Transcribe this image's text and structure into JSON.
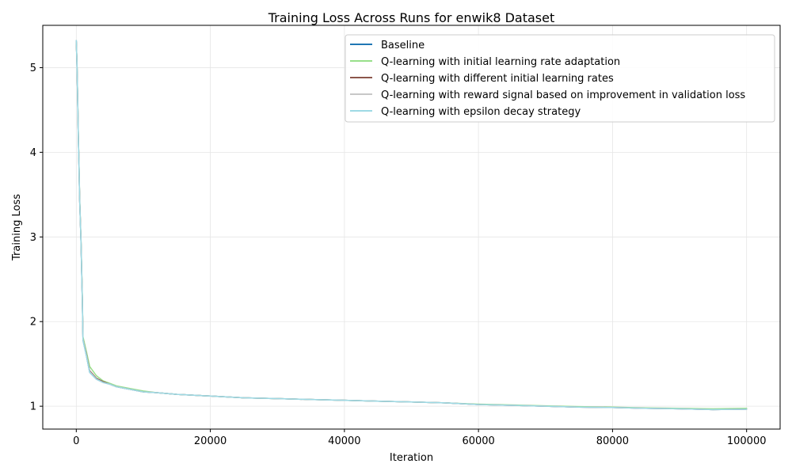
{
  "chart_data": {
    "type": "line",
    "title": "Training Loss Across Runs for enwik8 Dataset",
    "xlabel": "Iteration",
    "ylabel": "Training Loss",
    "xlim": [
      -5000,
      105000
    ],
    "ylim": [
      0.73,
      5.5
    ],
    "xticks": [
      0,
      20000,
      40000,
      60000,
      80000,
      100000
    ],
    "yticks": [
      1,
      2,
      3,
      4,
      5
    ],
    "grid": true,
    "legend_position": "top-right",
    "series": [
      {
        "name": "Baseline",
        "color": "#1f77b4",
        "x": [
          0,
          100,
          200,
          300,
          400,
          500,
          700,
          900,
          1000,
          1500,
          2000,
          3000,
          4000,
          5000,
          6000,
          8000,
          10000,
          12000,
          15000,
          20000,
          25000,
          30000,
          35000,
          40000,
          45000,
          50000,
          55000,
          60000,
          65000,
          70000,
          75000,
          80000,
          85000,
          90000,
          95000,
          100000
        ],
        "y": [
          5.32,
          5.05,
          4.65,
          4.2,
          3.85,
          3.45,
          2.95,
          2.25,
          1.78,
          1.6,
          1.4,
          1.32,
          1.28,
          1.26,
          1.23,
          1.2,
          1.17,
          1.16,
          1.14,
          1.12,
          1.1,
          1.09,
          1.08,
          1.07,
          1.06,
          1.05,
          1.04,
          1.02,
          1.01,
          1.0,
          0.99,
          0.985,
          0.975,
          0.97,
          0.96,
          0.965
        ]
      },
      {
        "name": "Q-learning with initial learning rate adaptation",
        "color": "#98df8a",
        "x": [
          0,
          100,
          200,
          300,
          400,
          500,
          700,
          900,
          1000,
          1500,
          2000,
          3000,
          4000,
          5000,
          6000,
          8000,
          10000,
          12000,
          15000,
          20000,
          25000,
          30000,
          35000,
          40000,
          45000,
          50000,
          55000,
          60000,
          65000,
          70000,
          75000,
          80000,
          85000,
          90000,
          95000,
          100000
        ],
        "y": [
          5.3,
          5.08,
          4.68,
          4.22,
          3.88,
          3.48,
          2.98,
          2.3,
          1.82,
          1.65,
          1.47,
          1.36,
          1.3,
          1.27,
          1.24,
          1.21,
          1.18,
          1.16,
          1.14,
          1.12,
          1.1,
          1.09,
          1.08,
          1.07,
          1.06,
          1.05,
          1.04,
          1.025,
          1.015,
          1.005,
          0.995,
          0.99,
          0.98,
          0.975,
          0.97,
          0.975
        ]
      },
      {
        "name": "Q-learning with different initial learning rates",
        "color": "#8c564b",
        "x": [
          0,
          100,
          200,
          300,
          400,
          500,
          700,
          900,
          1000,
          1500,
          2000,
          3000,
          4000,
          5000,
          6000,
          8000,
          10000,
          12000,
          15000,
          20000,
          25000,
          30000,
          35000,
          40000,
          45000,
          50000,
          55000,
          60000,
          65000,
          70000,
          75000,
          80000,
          85000,
          90000,
          95000,
          100000
        ],
        "y": [
          5.31,
          5.06,
          4.66,
          4.21,
          3.86,
          3.46,
          2.96,
          2.27,
          1.79,
          1.62,
          1.42,
          1.33,
          1.29,
          1.26,
          1.23,
          1.2,
          1.17,
          1.16,
          1.14,
          1.12,
          1.1,
          1.09,
          1.08,
          1.07,
          1.06,
          1.05,
          1.04,
          1.02,
          1.01,
          1.0,
          0.99,
          0.985,
          0.975,
          0.97,
          0.96,
          0.965
        ]
      },
      {
        "name": "Q-learning with reward signal based on improvement in validation loss",
        "color": "#c7c7c7",
        "x": [
          0,
          100,
          200,
          300,
          400,
          500,
          700,
          900,
          1000,
          1500,
          2000,
          3000,
          4000,
          5000,
          6000,
          8000,
          10000,
          12000,
          15000,
          20000,
          25000,
          30000,
          35000,
          40000,
          45000,
          50000,
          55000,
          60000,
          65000,
          70000,
          75000,
          80000,
          85000,
          90000,
          95000,
          100000
        ],
        "y": [
          5.32,
          5.05,
          4.66,
          4.2,
          3.86,
          3.45,
          2.96,
          2.26,
          1.79,
          1.61,
          1.41,
          1.32,
          1.28,
          1.26,
          1.23,
          1.2,
          1.17,
          1.16,
          1.14,
          1.12,
          1.1,
          1.09,
          1.08,
          1.07,
          1.06,
          1.05,
          1.04,
          1.02,
          1.01,
          1.0,
          0.99,
          0.985,
          0.975,
          0.97,
          0.96,
          0.965
        ]
      },
      {
        "name": "Q-learning with epsilon decay strategy",
        "color": "#9edae5",
        "x": [
          0,
          100,
          200,
          300,
          400,
          500,
          700,
          900,
          1000,
          1500,
          2000,
          3000,
          4000,
          5000,
          6000,
          8000,
          10000,
          12000,
          15000,
          20000,
          25000,
          30000,
          35000,
          40000,
          45000,
          50000,
          55000,
          60000,
          65000,
          70000,
          75000,
          80000,
          85000,
          90000,
          95000,
          100000
        ],
        "y": [
          5.32,
          5.05,
          4.65,
          4.2,
          3.85,
          3.45,
          2.95,
          2.25,
          1.78,
          1.6,
          1.4,
          1.32,
          1.28,
          1.26,
          1.23,
          1.2,
          1.17,
          1.16,
          1.14,
          1.12,
          1.1,
          1.09,
          1.08,
          1.07,
          1.06,
          1.05,
          1.04,
          1.02,
          1.01,
          1.0,
          0.99,
          0.985,
          0.975,
          0.97,
          0.96,
          0.965
        ]
      }
    ]
  }
}
